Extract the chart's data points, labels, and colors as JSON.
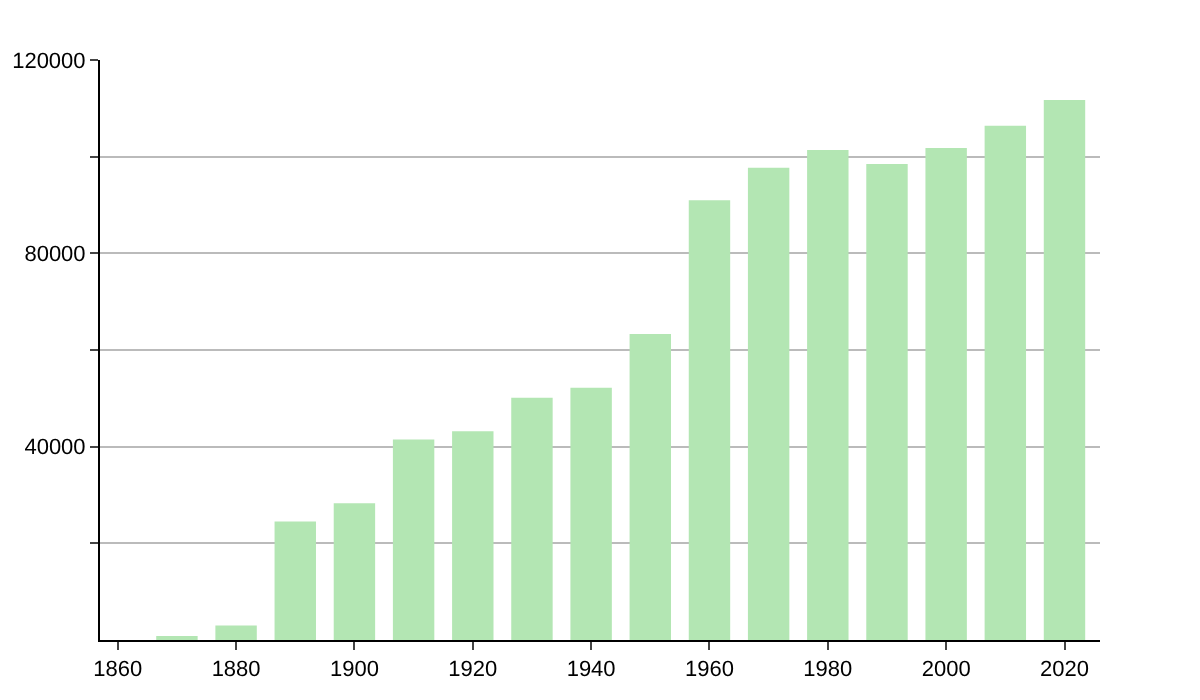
{
  "chart_data": {
    "type": "bar",
    "x": [
      1870,
      1880,
      1890,
      1900,
      1910,
      1920,
      1930,
      1940,
      1950,
      1960,
      1970,
      1980,
      1990,
      2000,
      2010,
      2020
    ],
    "values": [
      500,
      3000,
      24500,
      28300,
      41500,
      43200,
      50100,
      52200,
      63300,
      91000,
      97700,
      101400,
      98500,
      101800,
      106400,
      111700
    ],
    "color": "#b3e6b3",
    "xlim": [
      1857,
      2026
    ],
    "xticks": [
      1860,
      1880,
      1900,
      1920,
      1940,
      1960,
      1980,
      2000,
      2020
    ],
    "ylim": [
      0,
      120000
    ],
    "yticks": [
      {
        "value": 20000,
        "label": null
      },
      40000,
      {
        "value": 60000,
        "label": null
      },
      80000,
      {
        "value": 100000,
        "label": null
      },
      120000
    ],
    "grid": "y"
  }
}
